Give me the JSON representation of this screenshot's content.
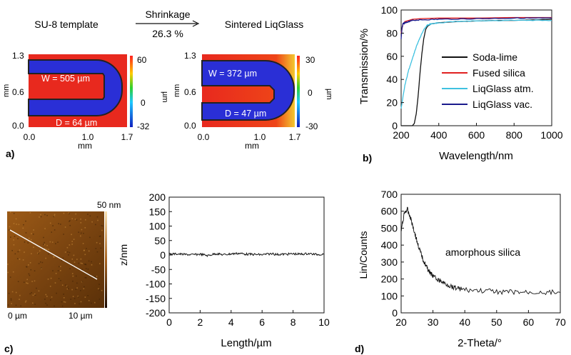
{
  "panel_a": {
    "label": "a)",
    "left_title": "SU-8 template",
    "right_title": "Sintered LiqGlass",
    "arrow_top": "Shrinkage",
    "arrow_bottom": "26.3 %",
    "left_map": {
      "x_ticks": [
        "0.0",
        "1.0",
        "1.7"
      ],
      "y_ticks": [
        "1.3",
        "0.6",
        "0.0"
      ],
      "x_unit": "mm",
      "y_unit": "mm",
      "width_label": "W = 505 µm",
      "depth_label": "D = 64 µm",
      "colorbar_ticks": [
        "60",
        "0",
        "-32"
      ],
      "colorbar_unit": "µm"
    },
    "right_map": {
      "x_ticks": [
        "0.0",
        "1.0",
        "1.7"
      ],
      "y_ticks": [
        "1.3",
        "0.6",
        "0.0"
      ],
      "x_unit": "mm",
      "y_unit": "mm",
      "width_label": "W = 372 µm",
      "depth_label": "D = 47 µm",
      "colorbar_ticks": [
        "30",
        "0",
        "-30"
      ],
      "colorbar_unit": "µm"
    },
    "colors": {
      "high": "#e8291e",
      "low": "#2a2fd6",
      "outline": "#222222"
    }
  },
  "panel_b": {
    "label": "b)",
    "chart_data": {
      "type": "line",
      "xlabel": "Wavelength/nm",
      "ylabel": "Transmission/%",
      "xlim": [
        200,
        1000
      ],
      "ylim": [
        0,
        100
      ],
      "x_ticks": [
        "200",
        "400",
        "600",
        "800",
        "1000"
      ],
      "y_ticks": [
        "0",
        "20",
        "40",
        "60",
        "80",
        "100"
      ],
      "legend_position": "center-right",
      "series": [
        {
          "name": "Soda-lime",
          "color": "#111111",
          "x": [
            200,
            260,
            270,
            280,
            290,
            300,
            310,
            320,
            330,
            340,
            360,
            400,
            500,
            600,
            700,
            800,
            900,
            1000
          ],
          "y": [
            0,
            0,
            2,
            10,
            25,
            45,
            62,
            75,
            83,
            86,
            88,
            89,
            90,
            90.5,
            91,
            91,
            91.5,
            92
          ]
        },
        {
          "name": "Fused silica",
          "color": "#e02020",
          "x": [
            200,
            210,
            220,
            240,
            260,
            300,
            400,
            600,
            800,
            1000
          ],
          "y": [
            80,
            88,
            90,
            91,
            92,
            92.5,
            93,
            93,
            93.5,
            93.5
          ]
        },
        {
          "name": "LiqGlass atm.",
          "color": "#3fc1e0",
          "x": [
            200,
            220,
            240,
            260,
            280,
            300,
            320,
            340,
            360,
            400,
            500,
            600,
            800,
            1000
          ],
          "y": [
            15,
            35,
            48,
            58,
            68,
            76,
            83,
            87,
            88,
            89,
            90,
            90.5,
            91,
            91
          ]
        },
        {
          "name": "LiqGlass vac.",
          "color": "#1a1a8c",
          "x": [
            200,
            205,
            210,
            220,
            240,
            260,
            300,
            400,
            600,
            800,
            1000
          ],
          "y": [
            75,
            85,
            88,
            89,
            90,
            91,
            91.5,
            92,
            92.5,
            93,
            93
          ]
        }
      ]
    }
  },
  "panel_c": {
    "label": "c)",
    "afm": {
      "scale_label": "50 nm",
      "x_start": "0 µm",
      "x_end": "10 µm"
    },
    "chart_data": {
      "type": "line",
      "xlabel": "Length/µm",
      "ylabel": "z/nm",
      "xlim": [
        0,
        10
      ],
      "ylim": [
        -200,
        200
      ],
      "x_ticks": [
        "0",
        "2",
        "4",
        "6",
        "8",
        "10"
      ],
      "y_ticks": [
        "200",
        "150",
        "100",
        "50",
        "0",
        "-50",
        "-100",
        "-150",
        "-200"
      ],
      "series": [
        {
          "x": [
            0,
            0.5,
            1,
            1.5,
            2,
            2.5,
            3,
            3.5,
            4,
            4.5,
            5,
            5.5,
            6,
            6.5,
            7,
            7.5,
            8,
            8.5,
            9,
            9.5,
            10
          ],
          "y": [
            3,
            4,
            2,
            1,
            3,
            -2,
            5,
            1,
            4,
            6,
            3,
            2,
            1,
            4,
            2,
            3,
            4,
            3,
            5,
            2,
            3
          ]
        }
      ]
    }
  },
  "panel_d": {
    "label": "d)",
    "annotation": "amorphous silica",
    "chart_data": {
      "type": "line",
      "xlabel": "2-Theta/°",
      "ylabel": "Lin/Counts",
      "xlim": [
        20,
        70
      ],
      "ylim": [
        0,
        700
      ],
      "x_ticks": [
        "20",
        "30",
        "40",
        "50",
        "60",
        "70"
      ],
      "y_ticks": [
        "700",
        "600",
        "500",
        "400",
        "300",
        "200",
        "100",
        "0"
      ],
      "series": [
        {
          "x": [
            20,
            21,
            22,
            23,
            24,
            25,
            26,
            27,
            28,
            29,
            30,
            32,
            34,
            36,
            38,
            40,
            45,
            50,
            55,
            60,
            65,
            70
          ],
          "y": [
            480,
            590,
            610,
            560,
            490,
            420,
            360,
            310,
            270,
            240,
            215,
            190,
            170,
            155,
            145,
            135,
            130,
            125,
            122,
            120,
            122,
            120
          ]
        }
      ]
    }
  }
}
